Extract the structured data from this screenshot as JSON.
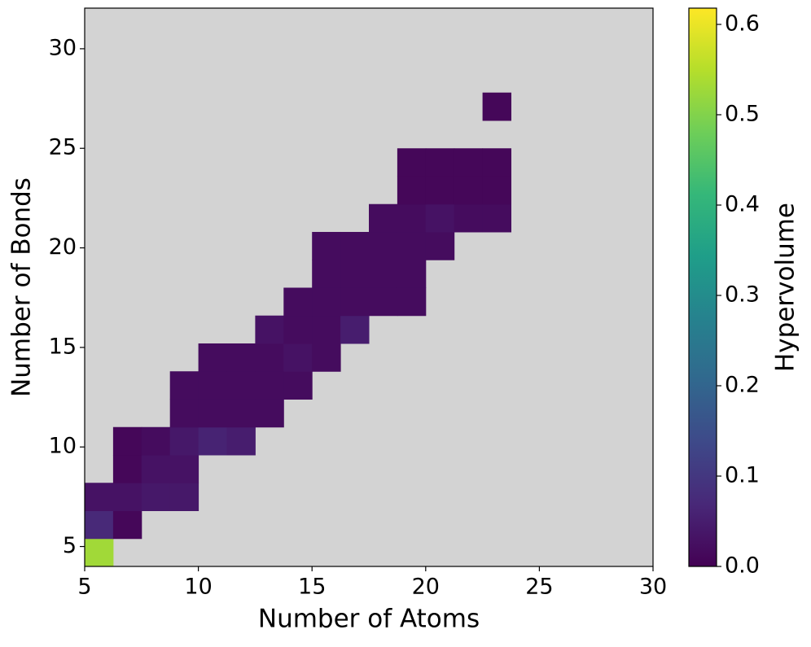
{
  "chart_data": {
    "type": "heatmap",
    "xlabel": "Number of Atoms",
    "ylabel": "Number of Bonds",
    "colorbar_label": "Hypervolume",
    "colormap": "viridis",
    "background": "#d3d3d3",
    "xlim": [
      5,
      30
    ],
    "ylim": [
      4,
      32.04
    ],
    "zlim": [
      0,
      0.618
    ],
    "xticks": [
      5,
      10,
      15,
      20,
      25,
      30
    ],
    "yticks": [
      5,
      10,
      15,
      20,
      25,
      30
    ],
    "zticks": [
      {
        "value": 0,
        "label": "0.0"
      },
      0.1,
      0.2,
      0.3,
      0.4,
      0.5,
      0.6
    ],
    "xbins": [
      5,
      6.25,
      7.5,
      8.75,
      10,
      11.25,
      12.5,
      13.75,
      15,
      16.25,
      17.5,
      18.75,
      20,
      21.25,
      22.5,
      23.75,
      25
    ],
    "ybins": [
      4,
      5.4,
      6.8,
      8.2,
      9.6,
      11,
      12.4,
      13.8,
      15.2,
      16.6,
      18,
      19.4,
      20.8,
      22.2,
      23.6,
      25,
      26.4,
      27.8
    ],
    "z": [
      [
        0.53,
        null,
        null,
        null,
        null,
        null,
        null,
        null,
        null,
        null,
        null,
        null,
        null,
        null,
        null,
        null
      ],
      [
        0.07,
        0.01,
        null,
        null,
        null,
        null,
        null,
        null,
        null,
        null,
        null,
        null,
        null,
        null,
        null,
        null
      ],
      [
        0.03,
        0.03,
        0.04,
        0.04,
        null,
        null,
        null,
        null,
        null,
        null,
        null,
        null,
        null,
        null,
        null,
        null
      ],
      [
        null,
        0.01,
        0.03,
        0.03,
        null,
        null,
        null,
        null,
        null,
        null,
        null,
        null,
        null,
        null,
        null,
        null
      ],
      [
        null,
        0.01,
        0.02,
        0.04,
        0.06,
        0.05,
        null,
        null,
        null,
        null,
        null,
        null,
        null,
        null,
        null,
        null
      ],
      [
        null,
        null,
        null,
        0.02,
        0.02,
        0.02,
        0.02,
        null,
        null,
        null,
        null,
        null,
        null,
        null,
        null,
        null
      ],
      [
        null,
        null,
        null,
        0.02,
        0.02,
        0.02,
        0.02,
        0.02,
        null,
        null,
        null,
        null,
        null,
        null,
        null,
        null
      ],
      [
        null,
        null,
        null,
        null,
        0.02,
        0.02,
        0.02,
        0.03,
        0.02,
        null,
        null,
        null,
        null,
        null,
        null,
        null
      ],
      [
        null,
        null,
        null,
        null,
        null,
        null,
        0.03,
        0.02,
        0.02,
        0.05,
        null,
        null,
        null,
        null,
        null,
        null
      ],
      [
        null,
        null,
        null,
        null,
        null,
        null,
        null,
        0.02,
        0.02,
        0.02,
        0.02,
        0.02,
        null,
        null,
        null,
        null
      ],
      [
        null,
        null,
        null,
        null,
        null,
        null,
        null,
        null,
        0.02,
        0.02,
        0.02,
        0.02,
        null,
        null,
        null,
        null
      ],
      [
        null,
        null,
        null,
        null,
        null,
        null,
        null,
        null,
        0.02,
        0.02,
        0.02,
        0.02,
        0.02,
        null,
        null,
        null
      ],
      [
        null,
        null,
        null,
        null,
        null,
        null,
        null,
        null,
        null,
        null,
        0.02,
        0.02,
        0.03,
        0.02,
        0.02,
        null
      ],
      [
        null,
        null,
        null,
        null,
        null,
        null,
        null,
        null,
        null,
        null,
        null,
        0.01,
        0.01,
        0.01,
        0.01,
        null
      ],
      [
        null,
        null,
        null,
        null,
        null,
        null,
        null,
        null,
        null,
        null,
        null,
        0.01,
        0.01,
        0.01,
        0.01,
        null
      ],
      [
        null,
        null,
        null,
        null,
        null,
        null,
        null,
        null,
        null,
        null,
        null,
        null,
        null,
        null,
        null,
        null
      ],
      [
        null,
        null,
        null,
        null,
        null,
        null,
        null,
        null,
        null,
        null,
        null,
        null,
        null,
        null,
        0.01,
        null
      ]
    ]
  }
}
